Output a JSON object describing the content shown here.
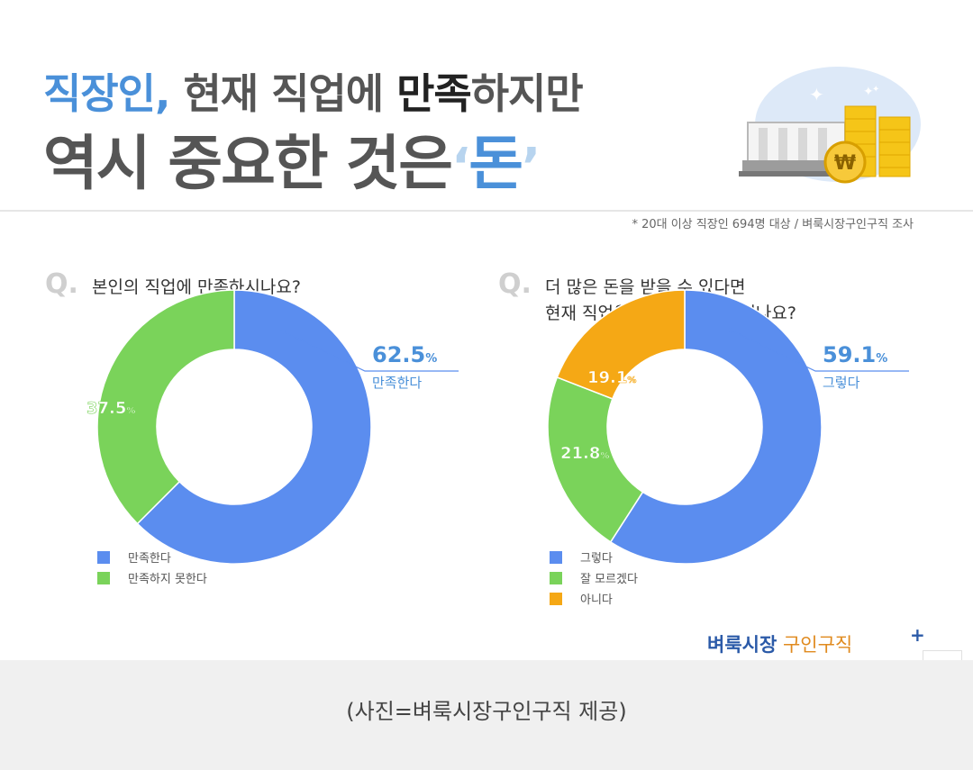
{
  "title": {
    "part1": "직장인,",
    "part2": " 현재 직업에 ",
    "part3": "만족",
    "part4": "하지만",
    "line2_text": "역시 중요한 것은",
    "quote_open": "‘",
    "highlight": "돈",
    "quote_close": "’"
  },
  "illustration": {
    "icon": "money-stack-icon",
    "coin_symbol": "₩"
  },
  "source_note": "* 20대 이상 직장인 694명 대상 / 벼룩시장구인구직 조사",
  "colors": {
    "blue": "#5b8def",
    "green": "#7ad35a",
    "orange": "#f5a815",
    "accent": "#4a90d9"
  },
  "chart_data": [
    {
      "type": "pie",
      "title": "본인의 직업에 만족하시나요?",
      "labels": [
        "만족한다",
        "만족하지 못한다"
      ],
      "values": [
        62.5,
        37.5
      ],
      "unit": "%",
      "colors": [
        "#5b8def",
        "#7ad35a"
      ],
      "callout_label": "만족한다",
      "legend_placement": "bottom-left"
    },
    {
      "type": "pie",
      "title": "더 많은 돈을 받을 수 있다면 현재 직업을 포기할 의향이 있나요?",
      "labels": [
        "그렇다",
        "잘 모르겠다",
        "아니다"
      ],
      "values": [
        59.1,
        21.8,
        19.1
      ],
      "unit": "%",
      "colors": [
        "#5b8def",
        "#7ad35a",
        "#f5a815"
      ],
      "callout_label": "그렇다",
      "legend_placement": "bottom-left"
    }
  ],
  "questions": {
    "q_mark": "Q.",
    "q1_line1": "본인의 직업에 만족하시나요?",
    "q2_line1": "더 많은 돈을 받을 수 있다면",
    "q2_line2": "현재 직업을 포기할 의향이 있나요?"
  },
  "brand": {
    "part1": "벼룩시장",
    "part2": " 구인구직",
    "plus": "+"
  },
  "caption": "(사진=벼룩시장구인구직 제공)"
}
